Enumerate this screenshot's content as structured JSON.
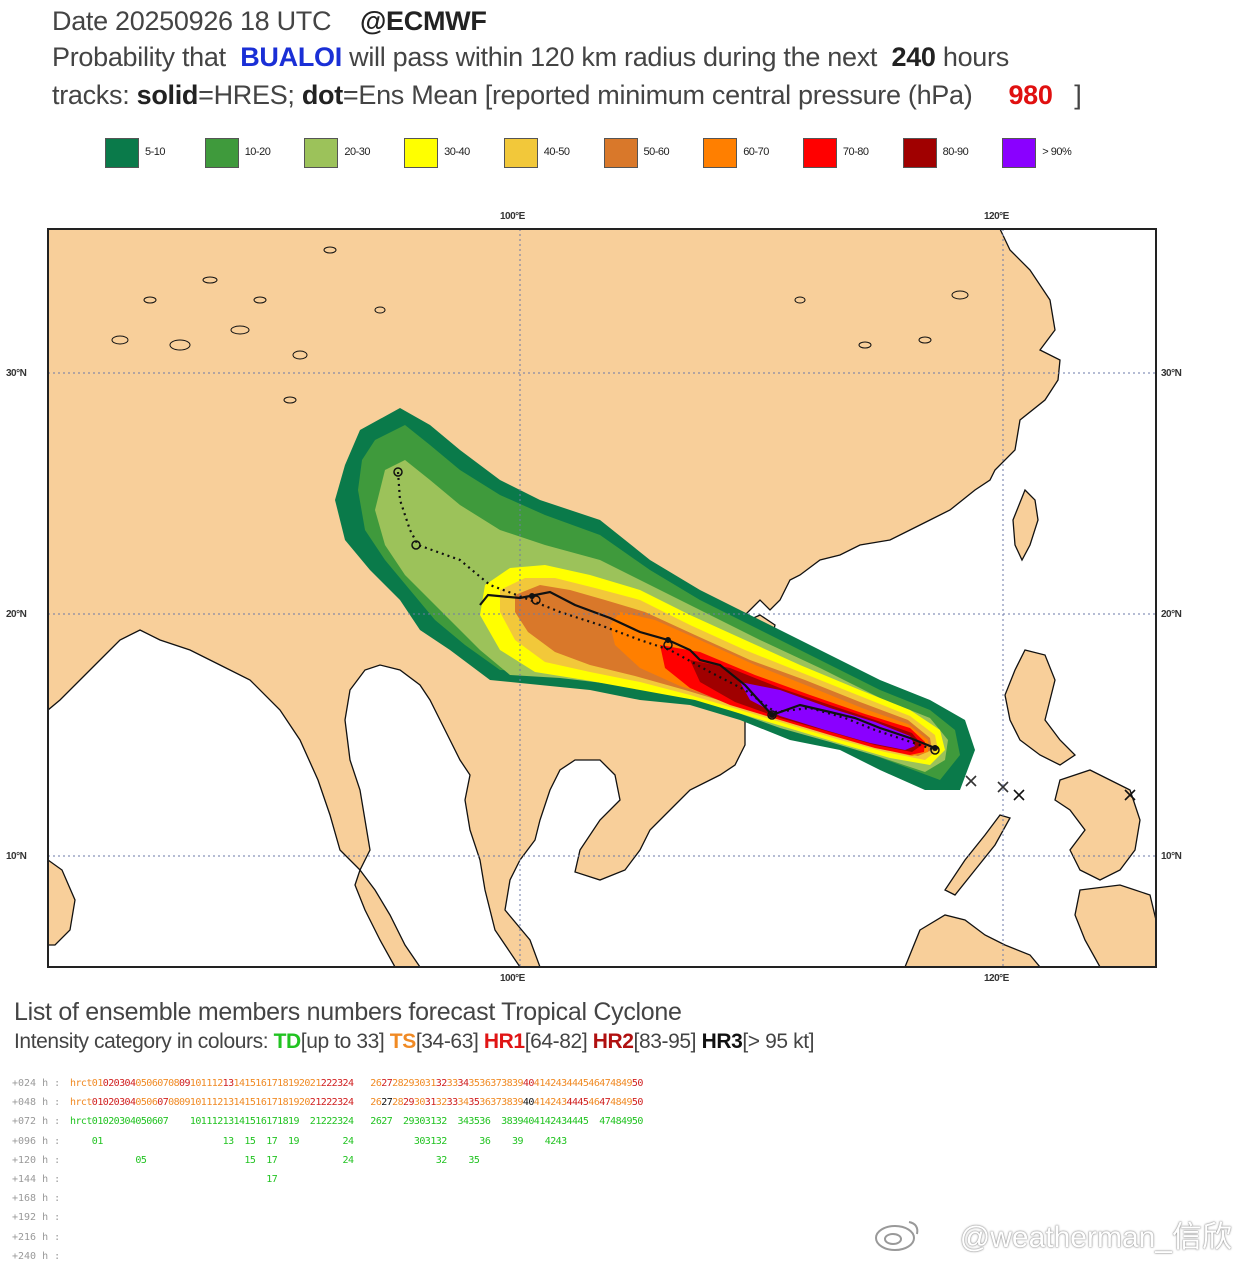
{
  "header": {
    "line1_date": "Date 20250926 18 UTC",
    "line1_source": "@ECMWF",
    "line2_prefix": "Probability that",
    "storm_name": "BUALOI",
    "line2_mid": "will pass within 120 km radius during the next",
    "hours": "240",
    "line2_suffix": "hours",
    "line3_tracks": "tracks:",
    "line3_solid": "solid",
    "line3_hres": "=HRES;",
    "line3_dot": "dot",
    "line3_ens": "=Ens Mean [reported minimum central pressure (hPa)",
    "pressure": "980",
    "line3_close": "]"
  },
  "legend": [
    {
      "label": "5-10",
      "color": "#0a7a4a"
    },
    {
      "label": "10-20",
      "color": "#3f9a3c"
    },
    {
      "label": "20-30",
      "color": "#9cc25a"
    },
    {
      "label": "30-40",
      "color": "#ffff00"
    },
    {
      "label": "40-50",
      "color": "#f2c83a"
    },
    {
      "label": "50-60",
      "color": "#d9782a"
    },
    {
      "label": "60-70",
      "color": "#ff7f00"
    },
    {
      "label": "70-80",
      "color": "#ff0000"
    },
    {
      "label": "80-90",
      "color": "#a00000"
    },
    {
      "label": "> 90%",
      "color": "#8a00ff"
    }
  ],
  "map": {
    "lon_top": [
      "100°E",
      "120°E"
    ],
    "lon_bottom": [
      "100°E",
      "120°E"
    ],
    "lat_left": [
      "30°N",
      "20°N",
      "10°N"
    ],
    "lat_right": [
      "30°N",
      "20°N",
      "10°N"
    ],
    "land_color": "#f8cf9a",
    "sea_color": "#ffffff"
  },
  "members_section": {
    "title": "List of ensemble members numbers forecast Tropical Cyclone",
    "subtitle_prefix": "Intensity category in colours:",
    "td": "TD",
    "td_range": "[up to 33]",
    "ts": "TS",
    "ts_range": "[34-63]",
    "hr1": "HR1",
    "hr1_range": "[64-82]",
    "hr2": "HR2",
    "hr2_range": "[83-95]",
    "hr3": "HR3",
    "hr3_range": "[> 95 kt]",
    "rows": [
      {
        "lead": "+024 h :",
        "cells": [
          [
            "hr",
            "ts"
          ],
          [
            "ct",
            "ts"
          ],
          [
            "01",
            "ts"
          ],
          [
            "02",
            "h2"
          ],
          [
            "03",
            "h2"
          ],
          [
            "04",
            "h2"
          ],
          [
            "05",
            "ts"
          ],
          [
            "06",
            "ts"
          ],
          [
            "07",
            "ts"
          ],
          [
            "08",
            "ts"
          ],
          [
            "09",
            "h2"
          ],
          [
            "10",
            "ts"
          ],
          [
            "11",
            "ts"
          ],
          [
            "12",
            "ts"
          ],
          [
            "13",
            "h2"
          ],
          [
            "14",
            "ts"
          ],
          [
            "15",
            "ts"
          ],
          [
            "16",
            "ts"
          ],
          [
            "17",
            "ts"
          ],
          [
            "18",
            "ts"
          ],
          [
            "19",
            "ts"
          ],
          [
            "20",
            "ts"
          ],
          [
            "21",
            "ts"
          ],
          [
            "22",
            "h2"
          ],
          [
            "23",
            "h2"
          ],
          [
            "24",
            "h2"
          ],
          [
            "",
            "ts"
          ],
          [
            "26",
            "ts"
          ],
          [
            "27",
            "h2"
          ],
          [
            "28",
            "ts"
          ],
          [
            "29",
            "ts"
          ],
          [
            "30",
            "ts"
          ],
          [
            "31",
            "ts"
          ],
          [
            "32",
            "h2"
          ],
          [
            "33",
            "ts"
          ],
          [
            "34",
            "h2"
          ],
          [
            "35",
            "ts"
          ],
          [
            "36",
            "ts"
          ],
          [
            "37",
            "ts"
          ],
          [
            "38",
            "ts"
          ],
          [
            "39",
            "ts"
          ],
          [
            "40",
            "h2"
          ],
          [
            "41",
            "ts"
          ],
          [
            "42",
            "ts"
          ],
          [
            "43",
            "ts"
          ],
          [
            "44",
            "ts"
          ],
          [
            "45",
            "ts"
          ],
          [
            "46",
            "ts"
          ],
          [
            "47",
            "ts"
          ],
          [
            "48",
            "ts"
          ],
          [
            "49",
            "ts"
          ],
          [
            "50",
            "h2"
          ]
        ]
      },
      {
        "lead": "+048 h :",
        "cells": [
          [
            "hr",
            "ts"
          ],
          [
            "ct",
            "ts"
          ],
          [
            "01",
            "h2"
          ],
          [
            "02",
            "h2"
          ],
          [
            "03",
            "h2"
          ],
          [
            "04",
            "h2"
          ],
          [
            "05",
            "ts"
          ],
          [
            "06",
            "ts"
          ],
          [
            "07",
            "h2"
          ],
          [
            "08",
            "ts"
          ],
          [
            "09",
            "ts"
          ],
          [
            "10",
            "ts"
          ],
          [
            "11",
            "ts"
          ],
          [
            "12",
            "ts"
          ],
          [
            "13",
            "ts"
          ],
          [
            "14",
            "ts"
          ],
          [
            "15",
            "ts"
          ],
          [
            "16",
            "ts"
          ],
          [
            "17",
            "ts"
          ],
          [
            "18",
            "ts"
          ],
          [
            "19",
            "ts"
          ],
          [
            "20",
            "ts"
          ],
          [
            "21",
            "h2"
          ],
          [
            "22",
            "h2"
          ],
          [
            "23",
            "h2"
          ],
          [
            "24",
            "h2"
          ],
          [
            "",
            "ts"
          ],
          [
            "26",
            "ts"
          ],
          [
            "27",
            "h3"
          ],
          [
            "28",
            "ts"
          ],
          [
            "29",
            "h2"
          ],
          [
            "30",
            "ts"
          ],
          [
            "31",
            "h2"
          ],
          [
            "32",
            "ts"
          ],
          [
            "33",
            "h2"
          ],
          [
            "34",
            "ts"
          ],
          [
            "35",
            "h2"
          ],
          [
            "36",
            "ts"
          ],
          [
            "37",
            "ts"
          ],
          [
            "38",
            "ts"
          ],
          [
            "39",
            "ts"
          ],
          [
            "40",
            "h3"
          ],
          [
            "41",
            "ts"
          ],
          [
            "42",
            "ts"
          ],
          [
            "43",
            "ts"
          ],
          [
            "44",
            "h2"
          ],
          [
            "45",
            "h2"
          ],
          [
            "46",
            "ts"
          ],
          [
            "47",
            "h2"
          ],
          [
            "48",
            "ts"
          ],
          [
            "49",
            "ts"
          ],
          [
            "50",
            "h2"
          ]
        ]
      },
      {
        "lead": "+072 h :",
        "cells": [
          [
            "hr",
            "td"
          ],
          [
            "ct",
            "td"
          ],
          [
            "01",
            "td"
          ],
          [
            "02",
            "td"
          ],
          [
            "03",
            "td"
          ],
          [
            "04",
            "td"
          ],
          [
            "05",
            "td"
          ],
          [
            "06",
            "td"
          ],
          [
            "07",
            "td"
          ],
          [
            "",
            "td"
          ],
          [
            "",
            "td"
          ],
          [
            "10",
            "td"
          ],
          [
            "11",
            "td"
          ],
          [
            "12",
            "td"
          ],
          [
            "13",
            "td"
          ],
          [
            "14",
            "td"
          ],
          [
            "15",
            "td"
          ],
          [
            "16",
            "td"
          ],
          [
            "17",
            "td"
          ],
          [
            "18",
            "td"
          ],
          [
            "19",
            "td"
          ],
          [
            "",
            "td"
          ],
          [
            "21",
            "td"
          ],
          [
            "22",
            "td"
          ],
          [
            "23",
            "td"
          ],
          [
            "24",
            "td"
          ],
          [
            "",
            "td"
          ],
          [
            "26",
            "td"
          ],
          [
            "27",
            "td"
          ],
          [
            "",
            "td"
          ],
          [
            "29",
            "td"
          ],
          [
            "30",
            "td"
          ],
          [
            "31",
            "td"
          ],
          [
            "32",
            "td"
          ],
          [
            "",
            "td"
          ],
          [
            "34",
            "td"
          ],
          [
            "35",
            "td"
          ],
          [
            "36",
            "td"
          ],
          [
            "",
            "td"
          ],
          [
            "38",
            "td"
          ],
          [
            "39",
            "td"
          ],
          [
            "40",
            "td"
          ],
          [
            "41",
            "td"
          ],
          [
            "42",
            "td"
          ],
          [
            "43",
            "td"
          ],
          [
            "44",
            "td"
          ],
          [
            "45",
            "td"
          ],
          [
            "",
            "td"
          ],
          [
            "47",
            "td"
          ],
          [
            "48",
            "td"
          ],
          [
            "49",
            "td"
          ],
          [
            "50",
            "td"
          ]
        ]
      },
      {
        "lead": "+096 h :",
        "cells": [
          [
            "",
            "td"
          ],
          [
            "",
            "td"
          ],
          [
            "01",
            "td"
          ],
          [
            "",
            "td"
          ],
          [
            "",
            "td"
          ],
          [
            "",
            "td"
          ],
          [
            "",
            "td"
          ],
          [
            "",
            "td"
          ],
          [
            "",
            "td"
          ],
          [
            "",
            "td"
          ],
          [
            "",
            "td"
          ],
          [
            "",
            "td"
          ],
          [
            "",
            "td"
          ],
          [
            "",
            "td"
          ],
          [
            "13",
            "td"
          ],
          [
            "",
            "td"
          ],
          [
            "15",
            "td"
          ],
          [
            "",
            "td"
          ],
          [
            "17",
            "td"
          ],
          [
            "",
            "td"
          ],
          [
            "19",
            "td"
          ],
          [
            "",
            "td"
          ],
          [
            "",
            "td"
          ],
          [
            "",
            "td"
          ],
          [
            "",
            "td"
          ],
          [
            "24",
            "td"
          ],
          [
            "",
            "td"
          ],
          [
            "",
            "td"
          ],
          [
            "",
            "td"
          ],
          [
            "",
            "td"
          ],
          [
            "",
            "td"
          ],
          [
            "30",
            "td"
          ],
          [
            "31",
            "td"
          ],
          [
            "32",
            "td"
          ],
          [
            "",
            "td"
          ],
          [
            "",
            "td"
          ],
          [
            "",
            "td"
          ],
          [
            "36",
            "td"
          ],
          [
            "",
            "td"
          ],
          [
            "",
            "td"
          ],
          [
            "39",
            "td"
          ],
          [
            "",
            "td"
          ],
          [
            "",
            "td"
          ],
          [
            "42",
            "td"
          ],
          [
            "43",
            "td"
          ]
        ]
      },
      {
        "lead": "+120 h :",
        "cells": [
          [
            "",
            "td"
          ],
          [
            "",
            "td"
          ],
          [
            "",
            "td"
          ],
          [
            "",
            "td"
          ],
          [
            "",
            "td"
          ],
          [
            "",
            "td"
          ],
          [
            "05",
            "td"
          ],
          [
            "",
            "td"
          ],
          [
            "",
            "td"
          ],
          [
            "",
            "td"
          ],
          [
            "",
            "td"
          ],
          [
            "",
            "td"
          ],
          [
            "",
            "td"
          ],
          [
            "",
            "td"
          ],
          [
            "",
            "td"
          ],
          [
            "",
            "td"
          ],
          [
            "15",
            "td"
          ],
          [
            "",
            "td"
          ],
          [
            "17",
            "td"
          ],
          [
            "",
            "td"
          ],
          [
            "",
            "td"
          ],
          [
            "",
            "td"
          ],
          [
            "",
            "td"
          ],
          [
            "",
            "td"
          ],
          [
            "",
            "td"
          ],
          [
            "24",
            "td"
          ],
          [
            "",
            "td"
          ],
          [
            "",
            "td"
          ],
          [
            "",
            "td"
          ],
          [
            "",
            "td"
          ],
          [
            "",
            "td"
          ],
          [
            "",
            "td"
          ],
          [
            "",
            "td"
          ],
          [
            "32",
            "td"
          ],
          [
            "",
            "td"
          ],
          [
            "",
            "td"
          ],
          [
            "35",
            "td"
          ]
        ]
      },
      {
        "lead": "+144 h :",
        "cells": [
          [
            "",
            "td"
          ],
          [
            "",
            "td"
          ],
          [
            "",
            "td"
          ],
          [
            "",
            "td"
          ],
          [
            "",
            "td"
          ],
          [
            "",
            "td"
          ],
          [
            "",
            "td"
          ],
          [
            "",
            "td"
          ],
          [
            "",
            "td"
          ],
          [
            "",
            "td"
          ],
          [
            "",
            "td"
          ],
          [
            "",
            "td"
          ],
          [
            "",
            "td"
          ],
          [
            "",
            "td"
          ],
          [
            "",
            "td"
          ],
          [
            "",
            "td"
          ],
          [
            "",
            "td"
          ],
          [
            "",
            "td"
          ],
          [
            "17",
            "td"
          ]
        ]
      },
      {
        "lead": "+168 h :",
        "cells": []
      },
      {
        "lead": "+192 h :",
        "cells": []
      },
      {
        "lead": "+216 h :",
        "cells": []
      },
      {
        "lead": "+240 h :",
        "cells": []
      }
    ]
  },
  "watermark": "@weatherman_信欣"
}
